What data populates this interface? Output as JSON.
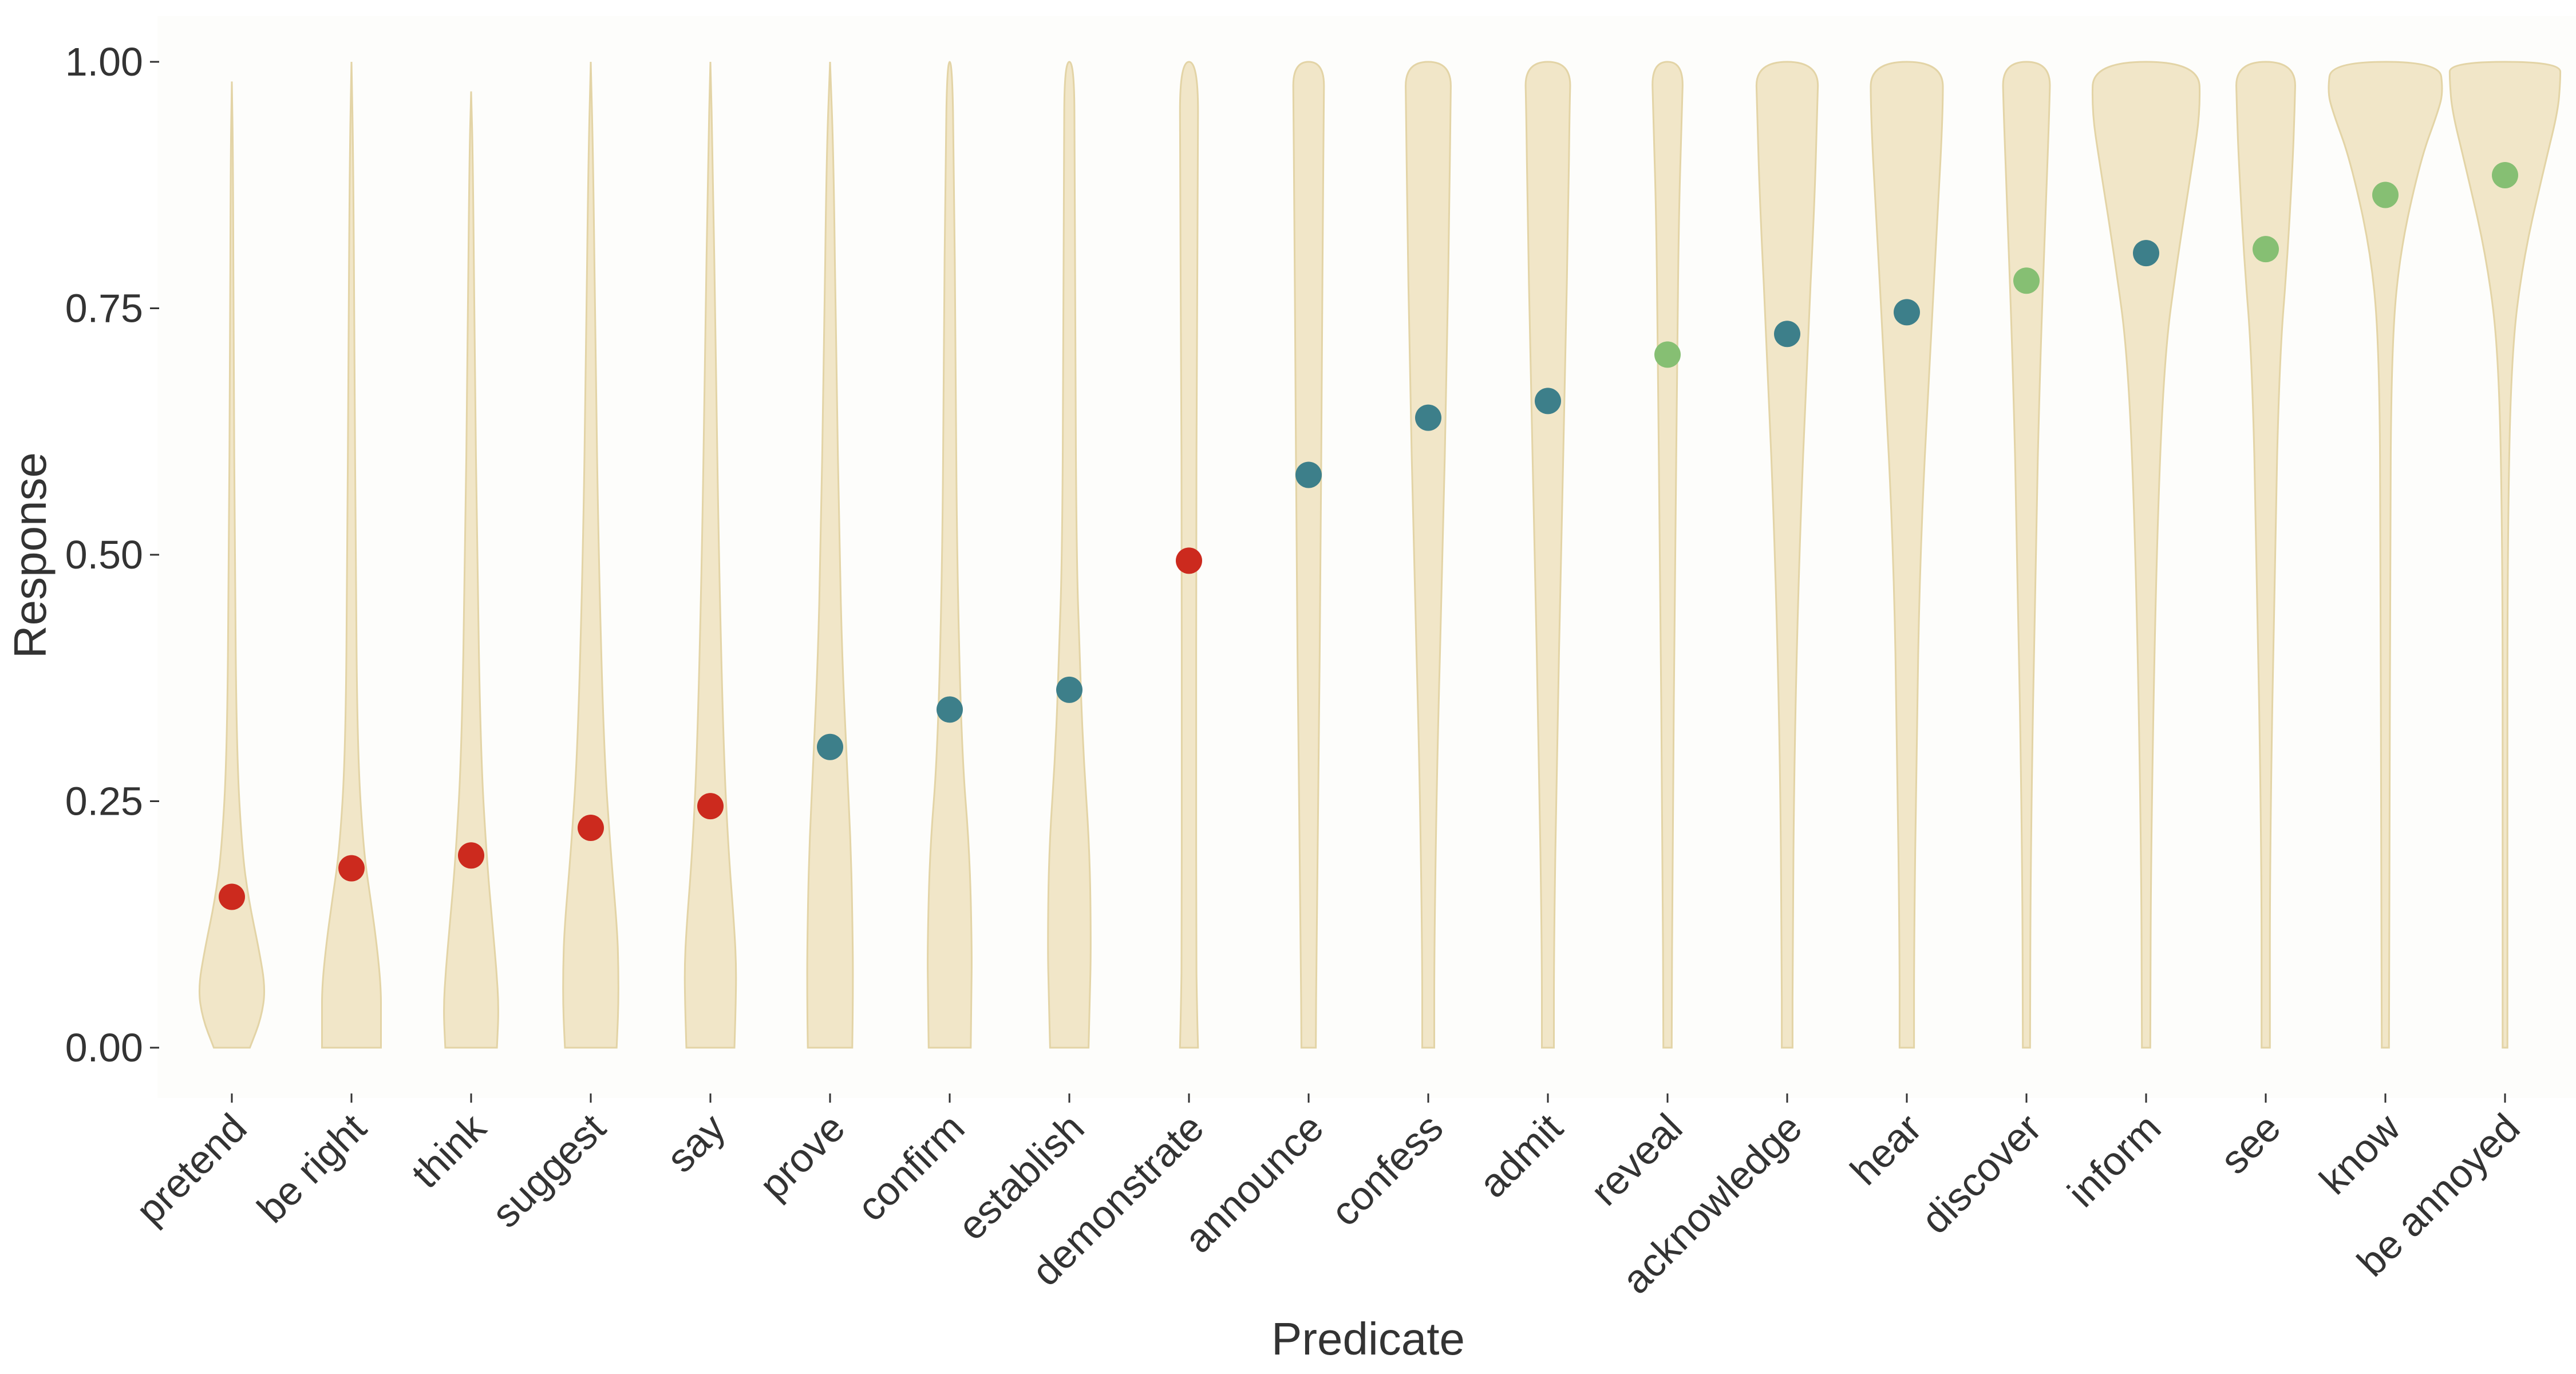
{
  "chart_data": {
    "type": "violin",
    "title": "",
    "xlabel": "Predicate",
    "ylabel": "Response",
    "ylim": [
      0,
      1
    ],
    "y_ticks": [
      "0.00",
      "0.25",
      "0.50",
      "0.75",
      "1.00"
    ],
    "categories": [
      "pretend",
      "be right",
      "think",
      "suggest",
      "say",
      "prove",
      "confirm",
      "establish",
      "demonstrate",
      "announce",
      "confess",
      "admit",
      "reveal",
      "acknowledge",
      "hear",
      "discover",
      "inform",
      "see",
      "know",
      "be annoyed"
    ],
    "means": [
      0.153,
      0.182,
      0.195,
      0.223,
      0.245,
      0.305,
      0.343,
      0.363,
      0.494,
      0.581,
      0.639,
      0.656,
      0.703,
      0.724,
      0.746,
      0.778,
      0.806,
      0.81,
      0.865,
      0.885
    ],
    "point_groups": [
      "red",
      "red",
      "red",
      "red",
      "red",
      "teal",
      "teal",
      "teal",
      "red",
      "teal",
      "teal",
      "teal",
      "green",
      "teal",
      "teal",
      "green",
      "teal",
      "green",
      "green",
      "green"
    ],
    "group_colors": {
      "red": "#cc2a1e",
      "teal": "#3d7f8a",
      "green": "#86bf73"
    },
    "violin_fill": "#f1e6c8",
    "violin_stroke": "#e3d4a6",
    "panel_background": "#fdfdfb",
    "violins": [
      {
        "top": 0.98,
        "w": [
          [
            0,
            0.3
          ],
          [
            0.03,
            0.49
          ],
          [
            0.06,
            0.56
          ],
          [
            0.1,
            0.45
          ],
          [
            0.15,
            0.28
          ],
          [
            0.2,
            0.17
          ],
          [
            0.3,
            0.08
          ],
          [
            0.5,
            0.05
          ],
          [
            0.7,
            0.03
          ],
          [
            0.9,
            0.02
          ],
          [
            0.98,
            0.0
          ]
        ]
      },
      {
        "top": 1.0,
        "w": [
          [
            0,
            0.49
          ],
          [
            0.03,
            0.49
          ],
          [
            0.06,
            0.49
          ],
          [
            0.1,
            0.43
          ],
          [
            0.15,
            0.32
          ],
          [
            0.2,
            0.2
          ],
          [
            0.3,
            0.1
          ],
          [
            0.5,
            0.07
          ],
          [
            0.7,
            0.05
          ],
          [
            0.9,
            0.03
          ],
          [
            1.0,
            0.0
          ]
        ]
      },
      {
        "top": 0.97,
        "w": [
          [
            0,
            0.43
          ],
          [
            0.04,
            0.46
          ],
          [
            0.08,
            0.42
          ],
          [
            0.12,
            0.36
          ],
          [
            0.2,
            0.25
          ],
          [
            0.3,
            0.16
          ],
          [
            0.5,
            0.1
          ],
          [
            0.7,
            0.06
          ],
          [
            0.9,
            0.03
          ],
          [
            0.97,
            0.0
          ]
        ]
      },
      {
        "top": 1.0,
        "w": [
          [
            0,
            0.43
          ],
          [
            0.04,
            0.46
          ],
          [
            0.08,
            0.46
          ],
          [
            0.12,
            0.44
          ],
          [
            0.2,
            0.33
          ],
          [
            0.3,
            0.22
          ],
          [
            0.5,
            0.13
          ],
          [
            0.7,
            0.08
          ],
          [
            0.9,
            0.04
          ],
          [
            1.0,
            0.0
          ]
        ]
      },
      {
        "top": 1.0,
        "w": [
          [
            0,
            0.4
          ],
          [
            0.04,
            0.42
          ],
          [
            0.08,
            0.43
          ],
          [
            0.12,
            0.4
          ],
          [
            0.2,
            0.3
          ],
          [
            0.3,
            0.22
          ],
          [
            0.5,
            0.14
          ],
          [
            0.7,
            0.09
          ],
          [
            0.9,
            0.04
          ],
          [
            1.0,
            0.0
          ]
        ]
      },
      {
        "top": 1.0,
        "w": [
          [
            0,
            0.37
          ],
          [
            0.05,
            0.38
          ],
          [
            0.1,
            0.38
          ],
          [
            0.2,
            0.35
          ],
          [
            0.3,
            0.27
          ],
          [
            0.4,
            0.2
          ],
          [
            0.5,
            0.16
          ],
          [
            0.7,
            0.1
          ],
          [
            0.9,
            0.06
          ],
          [
            1.0,
            0.0
          ]
        ]
      },
      {
        "top": 1.0,
        "w": [
          [
            0,
            0.35
          ],
          [
            0.05,
            0.36
          ],
          [
            0.1,
            0.37
          ],
          [
            0.2,
            0.33
          ],
          [
            0.3,
            0.2
          ],
          [
            0.5,
            0.12
          ],
          [
            0.7,
            0.1
          ],
          [
            0.9,
            0.07
          ],
          [
            1.0,
            0.04
          ]
        ]
      },
      {
        "top": 1.0,
        "w": [
          [
            0,
            0.32
          ],
          [
            0.05,
            0.34
          ],
          [
            0.1,
            0.36
          ],
          [
            0.2,
            0.34
          ],
          [
            0.3,
            0.23
          ],
          [
            0.4,
            0.17
          ],
          [
            0.5,
            0.12
          ],
          [
            0.7,
            0.1
          ],
          [
            0.9,
            0.09
          ],
          [
            1.0,
            0.08
          ]
        ]
      },
      {
        "top": 1.0,
        "w": [
          [
            0,
            0.15
          ],
          [
            0.05,
            0.13
          ],
          [
            0.1,
            0.12
          ],
          [
            0.3,
            0.12
          ],
          [
            0.5,
            0.12
          ],
          [
            0.7,
            0.13
          ],
          [
            0.9,
            0.15
          ],
          [
            1.0,
            0.15
          ]
        ]
      },
      {
        "top": 1.0,
        "w": [
          [
            0,
            0.12
          ],
          [
            0.1,
            0.13
          ],
          [
            0.3,
            0.17
          ],
          [
            0.5,
            0.2
          ],
          [
            0.7,
            0.22
          ],
          [
            0.85,
            0.24
          ],
          [
            0.95,
            0.25
          ],
          [
            1.0,
            0.26
          ]
        ]
      },
      {
        "top": 1.0,
        "w": [
          [
            0,
            0.1
          ],
          [
            0.1,
            0.1
          ],
          [
            0.3,
            0.15
          ],
          [
            0.5,
            0.24
          ],
          [
            0.7,
            0.31
          ],
          [
            0.85,
            0.35
          ],
          [
            0.95,
            0.37
          ],
          [
            1.0,
            0.38
          ]
        ]
      },
      {
        "top": 1.0,
        "w": [
          [
            0,
            0.1
          ],
          [
            0.1,
            0.1
          ],
          [
            0.3,
            0.15
          ],
          [
            0.5,
            0.22
          ],
          [
            0.7,
            0.29
          ],
          [
            0.85,
            0.34
          ],
          [
            0.95,
            0.36
          ],
          [
            1.0,
            0.38
          ]
        ]
      },
      {
        "top": 1.0,
        "w": [
          [
            0,
            0.07
          ],
          [
            0.2,
            0.08
          ],
          [
            0.5,
            0.13
          ],
          [
            0.7,
            0.16
          ],
          [
            0.85,
            0.19
          ],
          [
            0.95,
            0.24
          ],
          [
            1.0,
            0.26
          ]
        ]
      },
      {
        "top": 1.0,
        "w": [
          [
            0,
            0.09
          ],
          [
            0.1,
            0.09
          ],
          [
            0.3,
            0.12
          ],
          [
            0.5,
            0.2
          ],
          [
            0.7,
            0.33
          ],
          [
            0.85,
            0.45
          ],
          [
            0.95,
            0.5
          ],
          [
            1.0,
            0.52
          ]
        ]
      },
      {
        "top": 1.0,
        "w": [
          [
            0,
            0.12
          ],
          [
            0.1,
            0.12
          ],
          [
            0.3,
            0.16
          ],
          [
            0.5,
            0.22
          ],
          [
            0.7,
            0.38
          ],
          [
            0.85,
            0.52
          ],
          [
            0.95,
            0.6
          ],
          [
            1.0,
            0.6
          ]
        ]
      },
      {
        "top": 1.0,
        "w": [
          [
            0,
            0.06
          ],
          [
            0.2,
            0.07
          ],
          [
            0.5,
            0.15
          ],
          [
            0.7,
            0.23
          ],
          [
            0.85,
            0.32
          ],
          [
            0.95,
            0.38
          ],
          [
            1.0,
            0.4
          ]
        ]
      },
      {
        "top": 1.0,
        "w": [
          [
            0,
            0.07
          ],
          [
            0.2,
            0.08
          ],
          [
            0.5,
            0.17
          ],
          [
            0.7,
            0.3
          ],
          [
            0.8,
            0.52
          ],
          [
            0.9,
            0.78
          ],
          [
            0.95,
            0.9
          ],
          [
            1.0,
            0.88
          ]
        ]
      },
      {
        "top": 1.0,
        "w": [
          [
            0,
            0.07
          ],
          [
            0.2,
            0.07
          ],
          [
            0.5,
            0.15
          ],
          [
            0.7,
            0.23
          ],
          [
            0.8,
            0.36
          ],
          [
            0.9,
            0.45
          ],
          [
            0.95,
            0.48
          ],
          [
            1.0,
            0.5
          ]
        ]
      },
      {
        "top": 1.0,
        "w": [
          [
            0,
            0.06
          ],
          [
            0.2,
            0.07
          ],
          [
            0.5,
            0.08
          ],
          [
            0.7,
            0.1
          ],
          [
            0.8,
            0.22
          ],
          [
            0.9,
            0.58
          ],
          [
            0.95,
            0.88
          ],
          [
            0.97,
            0.96
          ],
          [
            1.0,
            0.9
          ]
        ]
      },
      {
        "top": 1.0,
        "w": [
          [
            0,
            0.04
          ],
          [
            0.2,
            0.04
          ],
          [
            0.5,
            0.04
          ],
          [
            0.7,
            0.1
          ],
          [
            0.8,
            0.3
          ],
          [
            0.9,
            0.68
          ],
          [
            0.95,
            0.88
          ],
          [
            0.98,
            0.92
          ],
          [
            1.0,
            0.92
          ]
        ]
      }
    ],
    "grid": false,
    "legend": "none"
  }
}
